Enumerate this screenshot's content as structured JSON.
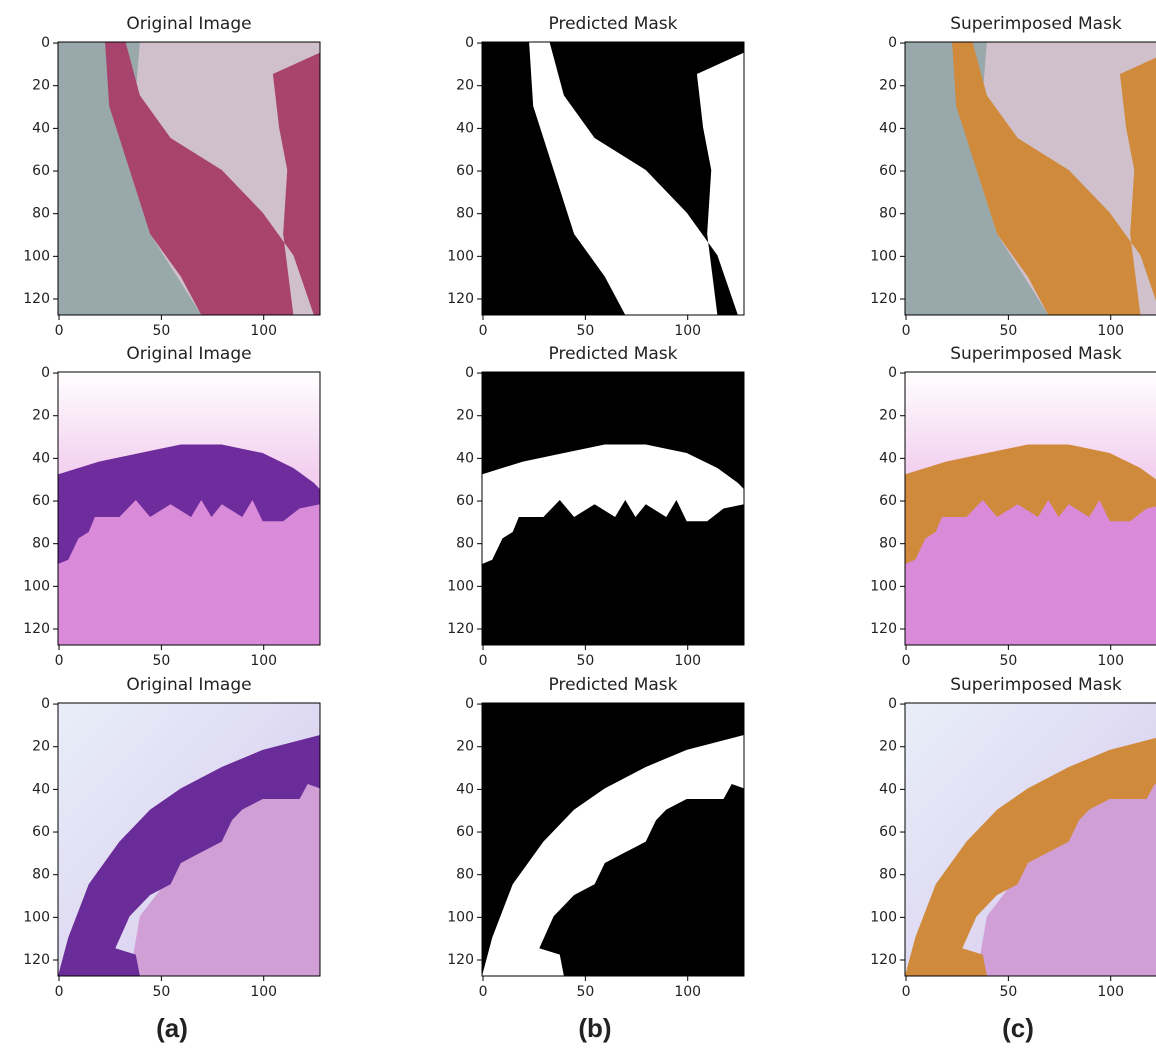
{
  "panels": [
    {
      "title": "Original Image",
      "xticks": [
        0,
        50,
        100
      ],
      "yticks": [
        0,
        20,
        40,
        60,
        80,
        100,
        120
      ]
    },
    {
      "title": "Predicted Mask",
      "xticks": [
        0,
        50,
        100
      ],
      "yticks": [
        0,
        20,
        40,
        60,
        80,
        100,
        120
      ]
    },
    {
      "title": "Superimposed Mask",
      "xticks": [
        0,
        50,
        100
      ],
      "yticks": [
        0,
        20,
        40,
        60,
        80,
        100,
        120
      ]
    },
    {
      "title": "Original Image",
      "xticks": [
        0,
        50,
        100
      ],
      "yticks": [
        0,
        20,
        40,
        60,
        80,
        100,
        120
      ]
    },
    {
      "title": "Predicted Mask",
      "xticks": [
        0,
        50,
        100
      ],
      "yticks": [
        0,
        20,
        40,
        60,
        80,
        100,
        120
      ]
    },
    {
      "title": "Superimposed Mask",
      "xticks": [
        0,
        50,
        100
      ],
      "yticks": [
        0,
        20,
        40,
        60,
        80,
        100,
        120
      ]
    },
    {
      "title": "Original Image",
      "xticks": [
        0,
        50,
        100
      ],
      "yticks": [
        0,
        20,
        40,
        60,
        80,
        100,
        120
      ]
    },
    {
      "title": "Predicted Mask",
      "xticks": [
        0,
        50,
        100
      ],
      "yticks": [
        0,
        20,
        40,
        60,
        80,
        100,
        120
      ]
    },
    {
      "title": "Superimposed Mask",
      "xticks": [
        0,
        50,
        100
      ],
      "yticks": [
        0,
        20,
        40,
        60,
        80,
        100,
        120
      ]
    }
  ],
  "column_labels": [
    "(a)",
    "(b)",
    "(c)"
  ]
}
